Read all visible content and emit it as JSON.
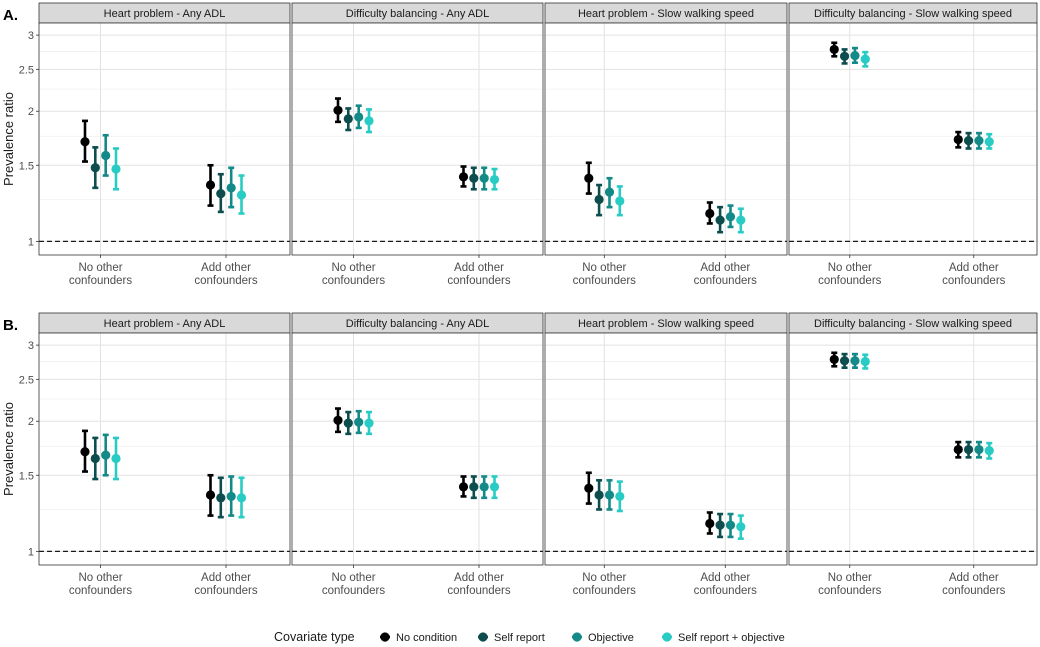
{
  "chart_data": {
    "type": "errorbar",
    "y_label": "Prevalence ratio",
    "y_scale": "log",
    "ylim": [
      0.93,
      3.2
    ],
    "y_ticks": [
      1,
      1.5,
      2,
      2.5,
      3
    ],
    "reference_line": 1,
    "x_categories": [
      "No other\nconfounders",
      "Add other\nconfounders"
    ],
    "legend_title": "Covariate type",
    "series": [
      {
        "name": "No condition",
        "color": "#000000"
      },
      {
        "name": "Self report",
        "color": "#0d4d4d"
      },
      {
        "name": "Objective",
        "color": "#138a87"
      },
      {
        "name": "Self report + objective",
        "color": "#28ccc4"
      }
    ],
    "panels": [
      {
        "tag": "A.",
        "facets": [
          {
            "title": "Heart problem - Any ADL",
            "data": [
              [
                [
                  1.7,
                  1.53,
                  1.9
                ],
                [
                  1.48,
                  1.33,
                  1.65
                ],
                [
                  1.58,
                  1.42,
                  1.76
                ],
                [
                  1.47,
                  1.32,
                  1.64
                ]
              ],
              [
                [
                  1.35,
                  1.21,
                  1.5
                ],
                [
                  1.29,
                  1.17,
                  1.43
                ],
                [
                  1.33,
                  1.2,
                  1.48
                ],
                [
                  1.28,
                  1.16,
                  1.42
                ]
              ]
            ]
          },
          {
            "title": "Difficulty balancing - Any ADL",
            "data": [
              [
                [
                  2.01,
                  1.89,
                  2.14
                ],
                [
                  1.92,
                  1.81,
                  2.03
                ],
                [
                  1.94,
                  1.83,
                  2.06
                ],
                [
                  1.9,
                  1.79,
                  2.02
                ]
              ],
              [
                [
                  1.41,
                  1.34,
                  1.49
                ],
                [
                  1.4,
                  1.32,
                  1.48
                ],
                [
                  1.4,
                  1.32,
                  1.48
                ],
                [
                  1.39,
                  1.32,
                  1.47
                ]
              ]
            ]
          },
          {
            "title": "Heart problem - Slow walking speed",
            "data": [
              [
                [
                  1.4,
                  1.29,
                  1.52
                ],
                [
                  1.25,
                  1.15,
                  1.35
                ],
                [
                  1.3,
                  1.2,
                  1.4
                ],
                [
                  1.24,
                  1.15,
                  1.34
                ]
              ],
              [
                [
                  1.16,
                  1.1,
                  1.23
                ],
                [
                  1.12,
                  1.05,
                  1.2
                ],
                [
                  1.14,
                  1.08,
                  1.21
                ],
                [
                  1.12,
                  1.05,
                  1.19
                ]
              ]
            ]
          },
          {
            "title": "Difficulty balancing - Slow walking speed",
            "data": [
              [
                [
                  2.78,
                  2.68,
                  2.88
                ],
                [
                  2.68,
                  2.58,
                  2.78
                ],
                [
                  2.69,
                  2.59,
                  2.8
                ],
                [
                  2.64,
                  2.54,
                  2.74
                ]
              ],
              [
                [
                  1.72,
                  1.65,
                  1.79
                ],
                [
                  1.71,
                  1.64,
                  1.78
                ],
                [
                  1.71,
                  1.64,
                  1.78
                ],
                [
                  1.7,
                  1.64,
                  1.77
                ]
              ]
            ]
          }
        ]
      },
      {
        "tag": "B.",
        "facets": [
          {
            "title": "Heart problem - Any ADL",
            "data": [
              [
                [
                  1.7,
                  1.53,
                  1.9
                ],
                [
                  1.64,
                  1.47,
                  1.83
                ],
                [
                  1.67,
                  1.5,
                  1.86
                ],
                [
                  1.64,
                  1.47,
                  1.83
                ]
              ],
              [
                [
                  1.35,
                  1.21,
                  1.5
                ],
                [
                  1.33,
                  1.2,
                  1.48
                ],
                [
                  1.34,
                  1.21,
                  1.49
                ],
                [
                  1.33,
                  1.2,
                  1.48
                ]
              ]
            ]
          },
          {
            "title": "Difficulty balancing - Any ADL",
            "data": [
              [
                [
                  2.01,
                  1.89,
                  2.14
                ],
                [
                  1.98,
                  1.87,
                  2.1
                ],
                [
                  1.99,
                  1.88,
                  2.11
                ],
                [
                  1.98,
                  1.87,
                  2.1
                ]
              ],
              [
                [
                  1.41,
                  1.34,
                  1.49
                ],
                [
                  1.41,
                  1.33,
                  1.49
                ],
                [
                  1.41,
                  1.33,
                  1.49
                ],
                [
                  1.41,
                  1.33,
                  1.49
                ]
              ]
            ]
          },
          {
            "title": "Heart problem - Slow walking speed",
            "data": [
              [
                [
                  1.4,
                  1.29,
                  1.52
                ],
                [
                  1.35,
                  1.25,
                  1.46
                ],
                [
                  1.35,
                  1.25,
                  1.46
                ],
                [
                  1.34,
                  1.24,
                  1.45
                ]
              ],
              [
                [
                  1.16,
                  1.1,
                  1.23
                ],
                [
                  1.15,
                  1.08,
                  1.22
                ],
                [
                  1.15,
                  1.08,
                  1.22
                ],
                [
                  1.14,
                  1.07,
                  1.21
                ]
              ]
            ]
          },
          {
            "title": "Difficulty balancing - Slow walking speed",
            "data": [
              [
                [
                  2.78,
                  2.68,
                  2.88
                ],
                [
                  2.76,
                  2.66,
                  2.86
                ],
                [
                  2.76,
                  2.66,
                  2.86
                ],
                [
                  2.75,
                  2.65,
                  2.85
                ]
              ],
              [
                [
                  1.72,
                  1.65,
                  1.79
                ],
                [
                  1.72,
                  1.65,
                  1.79
                ],
                [
                  1.72,
                  1.65,
                  1.79
                ],
                [
                  1.71,
                  1.64,
                  1.78
                ]
              ]
            ]
          }
        ]
      }
    ]
  }
}
